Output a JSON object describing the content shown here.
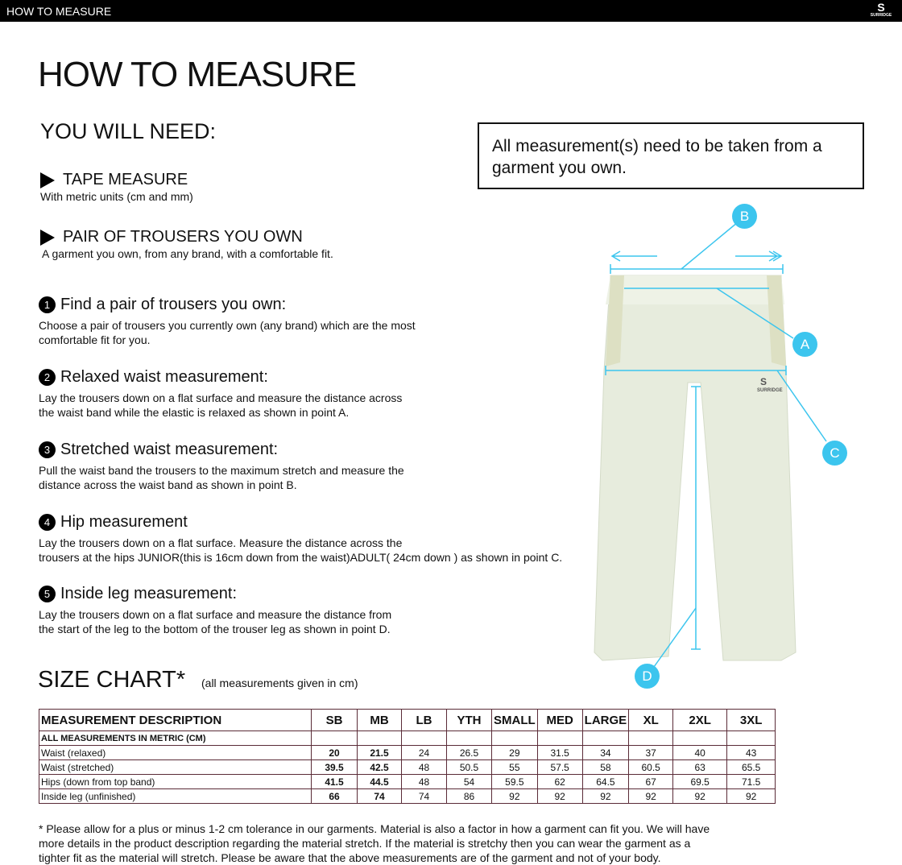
{
  "header": {
    "title": "HOW TO MEASURE",
    "logo_text": "SURRIDGE"
  },
  "page_title": "HOW TO MEASURE",
  "you_will_need": {
    "title": "YOU WILL NEED:",
    "items": [
      {
        "title": "TAPE MEASURE",
        "desc": "With metric units (cm and mm)"
      },
      {
        "title": "PAIR OF TROUSERS YOU OWN",
        "desc": "A garment you own, from any brand, with a comfortable fit."
      }
    ]
  },
  "note": "All measurement(s) need to be taken from a garment you own.",
  "steps": [
    {
      "n": "1",
      "title": "Find a pair of trousers you own:",
      "l1": "Choose a pair of trousers you currently own (any brand) which are the most",
      "l2": "comfortable fit for you."
    },
    {
      "n": "2",
      "title": "Relaxed waist measurement:",
      "l1": "Lay the trousers down on a flat surface and measure the distance across",
      "l2": "the waist band while the elastic is relaxed as shown in point A."
    },
    {
      "n": "3",
      "title": "Stretched waist measurement:",
      "l1": "Pull the waist band the trousers to the maximum stretch and measure the",
      "l2": "distance across the waist band as shown in point B."
    },
    {
      "n": "4",
      "title": "Hip measurement",
      "l1": "Lay the trousers down on a flat surface. Measure the distance across the",
      "l2": "trousers at the hips JUNIOR(this is 16cm down from the waist)ADULT( 24cm down ) as shown in point C."
    },
    {
      "n": "5",
      "title": "Inside leg measurement:",
      "l1": "Lay the trousers down on a flat surface and measure the distance from",
      "l2": "the start of the leg to the bottom of the trouser leg as shown in point D."
    }
  ],
  "diagram": {
    "points": [
      "A",
      "B",
      "C",
      "D"
    ],
    "accent": "#3cc5ee",
    "garment_logo": "SURRIDGE"
  },
  "size_chart": {
    "title": "SIZE CHART*",
    "note": "(all measurements given in cm)",
    "headers": [
      "MEASUREMENT DESCRIPTION",
      "SB",
      "MB",
      "LB",
      "YTH",
      "SMALL",
      "MED",
      "LARGE",
      "XL",
      "2XL",
      "3XL"
    ],
    "subheader": "ALL MEASUREMENTS IN METRIC (CM)",
    "rows": [
      [
        "Waist (relaxed)",
        "20",
        "21.5",
        "24",
        "26.5",
        "29",
        "31.5",
        "34",
        "37",
        "40",
        "43"
      ],
      [
        "Waist (stretched)",
        "39.5",
        "42.5",
        "48",
        "50.5",
        "55",
        "57.5",
        "58",
        "60.5",
        "63",
        "65.5"
      ],
      [
        "Hips (down from top band)",
        "41.5",
        "44.5",
        "48",
        "54",
        "59.5",
        "62",
        "64.5",
        "67",
        "69.5",
        "71.5"
      ],
      [
        "Inside leg (unfinished)",
        "66",
        "74",
        "74",
        "86",
        "92",
        "92",
        "92",
        "92",
        "92",
        "92"
      ]
    ]
  },
  "footer": [
    "* Please allow for a plus or minus 1-2 cm tolerance in our garments. Material is also a factor in how a garment can fit you. We will have",
    "more details in the product description regarding the material stretch.  If the material is stretchy then you can wear the garment as a",
    "tighter fit as the material will stretch.  Please be aware that the above measurements are of the garment and not of your body."
  ]
}
